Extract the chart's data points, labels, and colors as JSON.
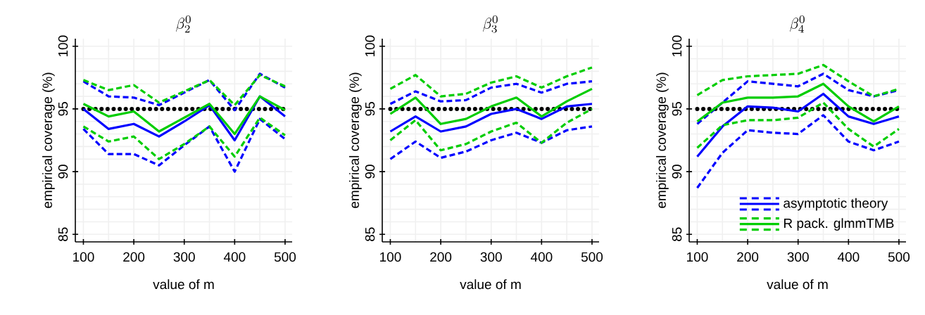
{
  "chart_data": [
    {
      "type": "line",
      "title": "\\beta_2^0",
      "xlabel": "value of m",
      "ylabel": "empirical coverage (%)",
      "x": [
        100,
        150,
        200,
        250,
        300,
        350,
        400,
        450,
        500
      ],
      "xlim": [
        84,
        514
      ],
      "xticks": [
        100,
        200,
        300,
        400,
        500
      ],
      "ylim": [
        84.4,
        100.6
      ],
      "yticks": [
        85,
        90,
        95,
        100
      ],
      "grid": true,
      "legend": false,
      "ref_lines": [
        {
          "axis": "y",
          "value": 95,
          "color": "#000000",
          "line_style": "dotted"
        }
      ],
      "series": [
        {
          "color": "#0000ff",
          "line_style": "dashed",
          "values": [
            97.2,
            96.0,
            95.9,
            95.3,
            96.3,
            97.3,
            94.9,
            97.8,
            96.7
          ]
        },
        {
          "color": "#0000ff",
          "line_style": "solid",
          "values": [
            95.0,
            93.4,
            93.8,
            92.8,
            94.0,
            95.3,
            92.5,
            96.0,
            94.4
          ]
        },
        {
          "color": "#0000ff",
          "line_style": "dashed",
          "values": [
            93.4,
            91.4,
            91.4,
            90.5,
            92.1,
            93.6,
            90.0,
            94.2,
            92.6
          ]
        },
        {
          "color": "#00cd00",
          "line_style": "dashed",
          "values": [
            97.3,
            96.5,
            96.9,
            95.5,
            96.4,
            97.3,
            95.3,
            97.7,
            96.8
          ]
        },
        {
          "color": "#00cd00",
          "line_style": "solid",
          "values": [
            95.4,
            94.4,
            94.8,
            93.2,
            94.3,
            95.4,
            93.0,
            96.0,
            94.9
          ]
        },
        {
          "color": "#00cd00",
          "line_style": "dashed",
          "values": [
            93.6,
            92.4,
            92.8,
            91.0,
            92.2,
            93.6,
            91.2,
            94.3,
            92.9
          ]
        }
      ]
    },
    {
      "type": "line",
      "title": "\\beta_3^0",
      "xlabel": "value of m",
      "ylabel": "empirical coverage (%)",
      "x": [
        100,
        150,
        200,
        250,
        300,
        350,
        400,
        450,
        500
      ],
      "xlim": [
        84,
        514
      ],
      "xticks": [
        100,
        200,
        300,
        400,
        500
      ],
      "ylim": [
        84.4,
        100.6
      ],
      "yticks": [
        85,
        90,
        95,
        100
      ],
      "grid": true,
      "legend": false,
      "ref_lines": [
        {
          "axis": "y",
          "value": 95,
          "color": "#000000",
          "line_style": "dotted"
        }
      ],
      "series": [
        {
          "color": "#0000ff",
          "line_style": "dashed",
          "values": [
            95.4,
            96.4,
            95.6,
            95.7,
            96.7,
            97.0,
            96.3,
            97.0,
            97.2
          ]
        },
        {
          "color": "#0000ff",
          "line_style": "solid",
          "values": [
            93.2,
            94.4,
            93.2,
            93.6,
            94.6,
            95.0,
            94.2,
            95.2,
            95.4
          ]
        },
        {
          "color": "#0000ff",
          "line_style": "dashed",
          "values": [
            91.0,
            92.4,
            91.1,
            91.6,
            92.5,
            93.1,
            92.3,
            93.3,
            93.6
          ]
        },
        {
          "color": "#00cd00",
          "line_style": "dashed",
          "values": [
            96.6,
            97.7,
            96.0,
            96.2,
            97.1,
            97.6,
            96.7,
            97.6,
            98.3
          ]
        },
        {
          "color": "#00cd00",
          "line_style": "solid",
          "values": [
            94.6,
            95.9,
            93.8,
            94.2,
            95.2,
            95.9,
            94.4,
            95.6,
            96.6
          ]
        },
        {
          "color": "#00cd00",
          "line_style": "dashed",
          "values": [
            92.5,
            94.1,
            91.7,
            92.2,
            93.2,
            93.9,
            92.3,
            93.9,
            95.0
          ]
        }
      ]
    },
    {
      "type": "line",
      "title": "\\beta_4^0",
      "xlabel": "value of m",
      "ylabel": "empirical coverage (%)",
      "x": [
        100,
        150,
        200,
        250,
        300,
        350,
        400,
        450,
        500
      ],
      "xlim": [
        84,
        514
      ],
      "xticks": [
        100,
        200,
        300,
        400,
        500
      ],
      "ylim": [
        84.4,
        100.6
      ],
      "yticks": [
        85,
        90,
        95,
        100
      ],
      "grid": true,
      "legend": "bottom right",
      "ref_lines": [
        {
          "axis": "y",
          "value": 95,
          "color": "#000000",
          "line_style": "dotted"
        }
      ],
      "series": [
        {
          "color": "#0000ff",
          "line_style": "dashed",
          "values": [
            93.8,
            95.5,
            97.2,
            97.0,
            96.8,
            97.8,
            96.5,
            96.0,
            96.5
          ]
        },
        {
          "name": "asymptotic theory",
          "color": "#0000ff",
          "line_style": "solid",
          "values": [
            91.2,
            93.6,
            95.2,
            95.1,
            94.8,
            96.2,
            94.4,
            93.8,
            94.4
          ]
        },
        {
          "color": "#0000ff",
          "line_style": "dashed",
          "values": [
            88.7,
            91.5,
            93.3,
            93.1,
            93.0,
            94.5,
            92.4,
            91.7,
            92.4
          ]
        },
        {
          "color": "#00cd00",
          "line_style": "dashed",
          "values": [
            96.1,
            97.3,
            97.6,
            97.7,
            97.8,
            98.5,
            97.2,
            96.0,
            96.6
          ]
        },
        {
          "name": "R pack. glmmTMB",
          "color": "#00cd00",
          "line_style": "solid",
          "values": [
            94.0,
            95.5,
            95.9,
            95.9,
            96.0,
            97.0,
            95.2,
            94.0,
            95.2
          ]
        },
        {
          "color": "#00cd00",
          "line_style": "dashed",
          "values": [
            91.9,
            93.7,
            94.1,
            94.1,
            94.3,
            95.5,
            93.4,
            92.0,
            93.4
          ]
        }
      ]
    }
  ]
}
